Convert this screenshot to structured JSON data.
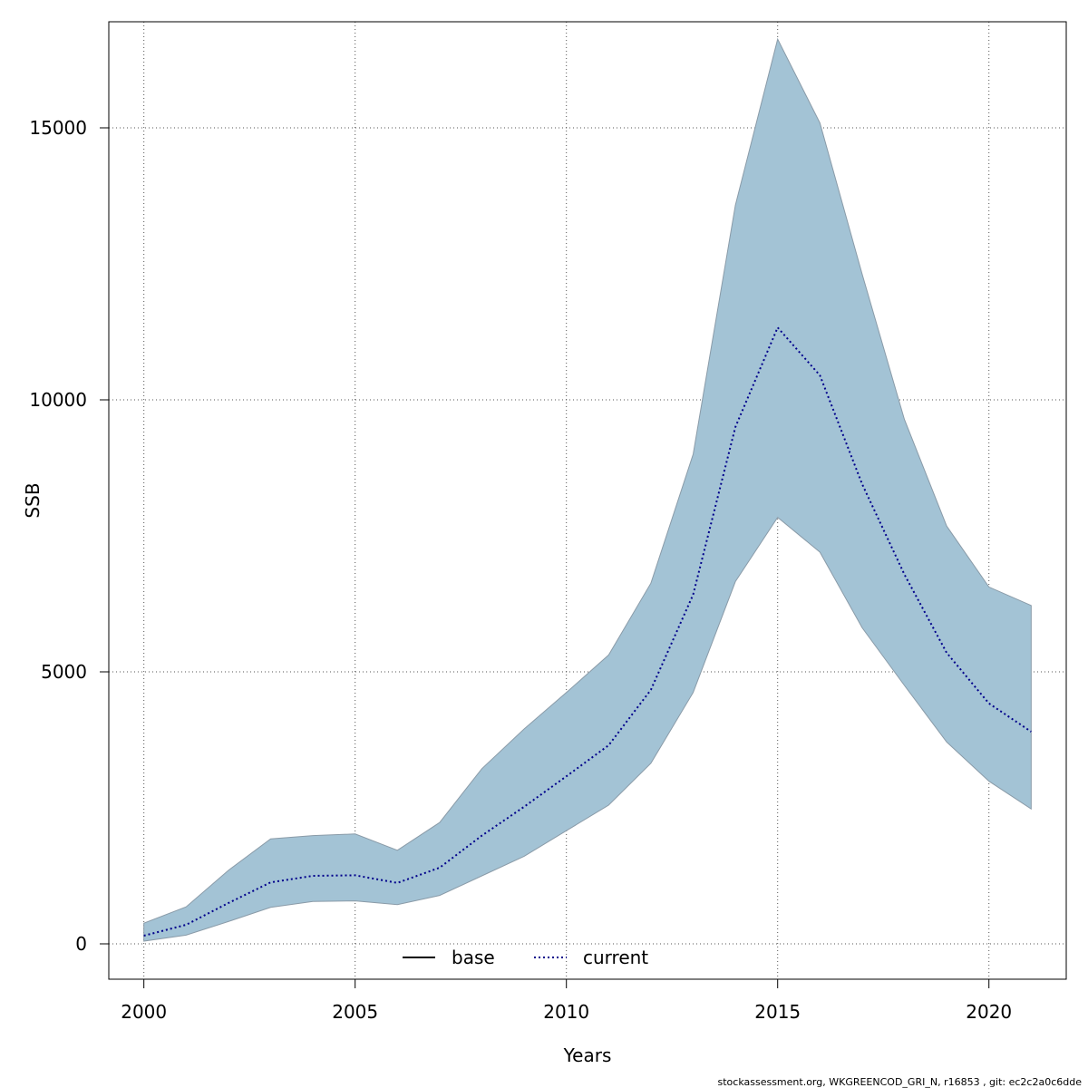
{
  "chart_data": {
    "type": "area",
    "xlabel": "Years",
    "ylabel": "SSB",
    "x": [
      2000,
      2001,
      2002,
      2003,
      2004,
      2005,
      2006,
      2007,
      2008,
      2009,
      2010,
      2011,
      2012,
      2013,
      2014,
      2015,
      2016,
      2017,
      2018,
      2019,
      2020,
      2021
    ],
    "xlim": [
      1999.17,
      2021.83
    ],
    "ylim": [
      -650,
      16950
    ],
    "xticks": [
      2000,
      2005,
      2010,
      2015,
      2020
    ],
    "xtick_labels": [
      "2000",
      "2005",
      "2010",
      "2015",
      "2020"
    ],
    "yticks": [
      0,
      5000,
      10000,
      15000
    ],
    "ytick_labels": [
      "0",
      "5000",
      "10000",
      "15000"
    ],
    "grid": true,
    "series": [
      {
        "name": "current",
        "style": "dotted",
        "color": "#00008b",
        "values": [
          150,
          350,
          750,
          1130,
          1250,
          1260,
          1120,
          1400,
          1990,
          2520,
          3080,
          3650,
          4670,
          6420,
          9500,
          11330,
          10450,
          8450,
          6790,
          5350,
          4420,
          3900
        ]
      }
    ],
    "band": {
      "color": "#a3c3d5",
      "edge_color": "#8a9ba8",
      "upper": [
        380,
        680,
        1350,
        1930,
        1990,
        2020,
        1720,
        2230,
        3220,
        3950,
        4620,
        5310,
        6630,
        9000,
        13580,
        16630,
        15090,
        12310,
        9640,
        7680,
        6560,
        6220
      ],
      "lower": [
        50,
        160,
        410,
        670,
        780,
        790,
        720,
        890,
        1250,
        1610,
        2080,
        2550,
        3320,
        4620,
        6660,
        7840,
        7200,
        5810,
        4750,
        3710,
        2990,
        2480
      ]
    },
    "legend": {
      "position": "bottom-center",
      "entries": [
        {
          "label": "base",
          "style": "solid",
          "color": "#000000"
        },
        {
          "label": "current",
          "style": "dotted",
          "color": "#00008b"
        }
      ]
    },
    "footer": "stockassessment.org, WKGREENCOD_GRI_N, r16853 , git: ec2c2a0c6dde"
  }
}
